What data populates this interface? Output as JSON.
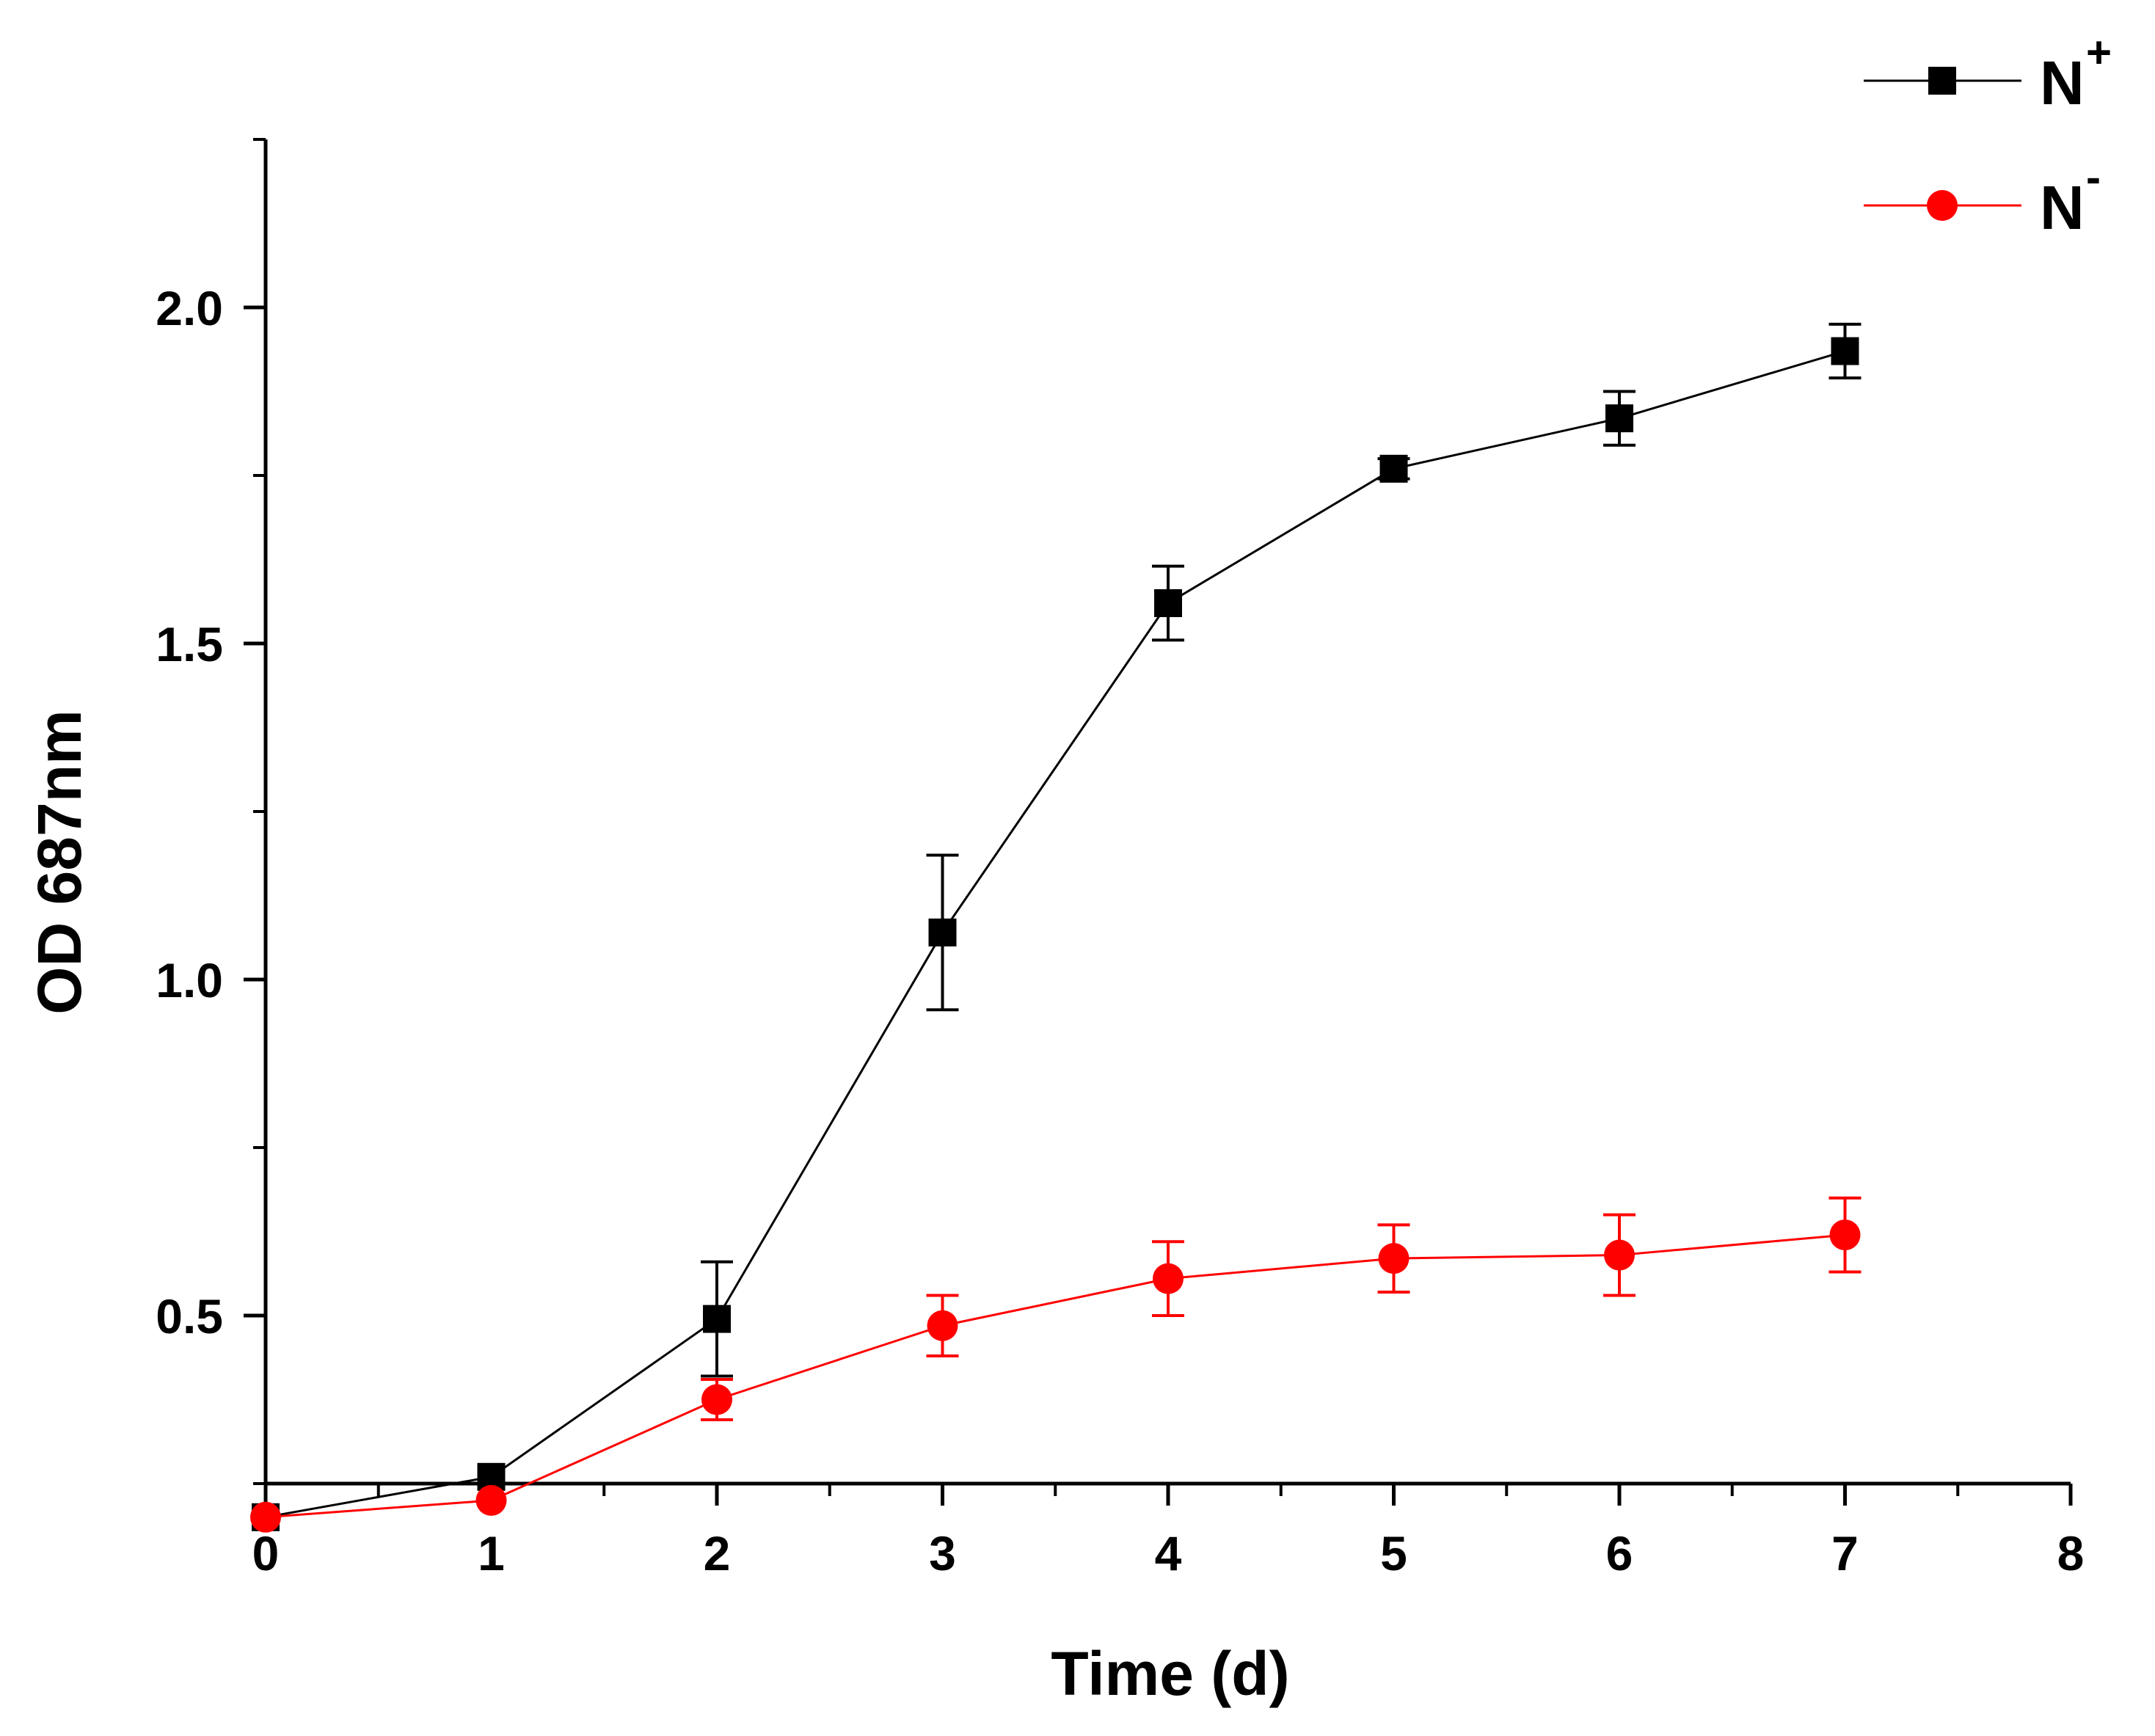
{
  "chart_data": {
    "type": "line",
    "title": "",
    "xlabel": "Time (d)",
    "ylabel": "OD 687nm",
    "xlim": [
      0,
      8
    ],
    "ylim": [
      0.25,
      2.25
    ],
    "xticks": [
      0,
      1,
      2,
      3,
      4,
      5,
      6,
      7,
      8
    ],
    "xtick_labels": [
      "0",
      "1",
      "2",
      "3",
      "4",
      "5",
      "6",
      "7",
      "8"
    ],
    "x_minor_step": 0.5,
    "yticks": [
      0.5,
      1.0,
      1.5,
      2.0
    ],
    "ytick_labels": [
      "0.5",
      "1.0",
      "1.5",
      "2.0"
    ],
    "y_minor_step": 0.25,
    "grid": false,
    "legend_position": "top-right",
    "series": [
      {
        "name": "N",
        "superscript": "+",
        "color": "#000000",
        "marker": "square",
        "x": [
          0,
          1,
          2,
          3,
          4,
          5,
          6,
          7
        ],
        "values": [
          0.2,
          0.26,
          0.495,
          1.07,
          1.56,
          1.76,
          1.835,
          1.935
        ],
        "errors": [
          0.0,
          0.0,
          0.085,
          0.115,
          0.055,
          0.015,
          0.04,
          0.04
        ]
      },
      {
        "name": "N",
        "superscript": "-",
        "color": "#ff0000",
        "marker": "circle",
        "x": [
          0,
          1,
          2,
          3,
          4,
          5,
          6,
          7
        ],
        "values": [
          0.2,
          0.225,
          0.375,
          0.485,
          0.555,
          0.585,
          0.59,
          0.62
        ],
        "errors": [
          0.0,
          0.0,
          0.03,
          0.045,
          0.055,
          0.05,
          0.06,
          0.055
        ]
      }
    ]
  }
}
